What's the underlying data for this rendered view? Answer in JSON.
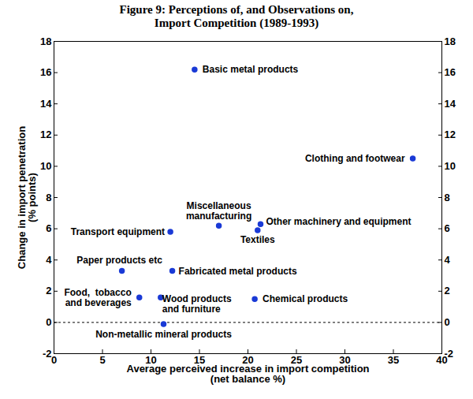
{
  "chart_data": {
    "type": "scatter",
    "title": "Figure 9: Perceptions of, and Observations on,\nImport Competition (1989-1993)",
    "x_label": "Average perceived increase in import competition\n(net balance %)",
    "y_label": "Change in import penetration\n(% points)",
    "categories": [
      "Basic metal products",
      "Clothing and footwear",
      "Miscellaneous\nmanufacturing",
      "Other machinery and equipment",
      "Textiles",
      "Transport equipment",
      "Paper products etc",
      "Fabricated metal products",
      "Food,  tobacco\nand beverages",
      "Wood products\nand furniture",
      "Chemical products",
      "Non-metallic mineral products"
    ],
    "x": [
      14.5,
      37,
      17,
      21.3,
      21,
      12,
      7,
      12.2,
      8.8,
      11,
      20.7,
      11.3
    ],
    "values": [
      16.2,
      10.5,
      6.2,
      6.3,
      5.9,
      5.8,
      3.3,
      3.3,
      1.6,
      1.6,
      1.5,
      -0.1
    ],
    "color": "#1a3ad6",
    "marker": "circle",
    "xlim": [
      0,
      40
    ],
    "xticks": [
      0,
      5,
      10,
      15,
      20,
      25,
      30,
      35,
      40
    ],
    "ylim": [
      -2,
      18
    ],
    "yticks": [
      -2,
      0,
      2,
      4,
      6,
      8,
      10,
      12,
      14,
      16,
      18
    ],
    "reference_line": {
      "value": 0,
      "line_style": "dashed"
    },
    "grid": false
  }
}
